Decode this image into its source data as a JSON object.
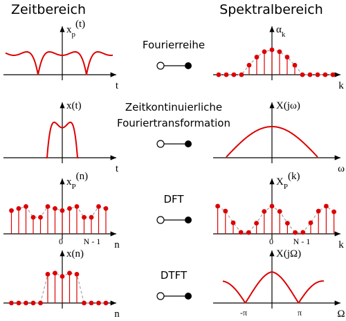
{
  "header": {
    "left": "Zeitbereich",
    "right": "Spektralbereich"
  },
  "rows": [
    {
      "transform": [
        "Fourierreihe"
      ],
      "time": {
        "ylabel": {
          "base": "x",
          "sub": "p",
          "arg": "(t)"
        },
        "xlabel": "t"
      },
      "freq": {
        "ylabel": {
          "base": "α",
          "sub": "k"
        },
        "xlabel": "k"
      }
    },
    {
      "transform": [
        "Zeitkontinuierliche",
        "Fouriertransformation"
      ],
      "time": {
        "ylabel": {
          "base": "x(t)"
        },
        "xlabel": "t"
      },
      "freq": {
        "ylabel": {
          "base": "X(jω)"
        },
        "xlabel": "ω"
      }
    },
    {
      "transform": [
        "DFT"
      ],
      "time": {
        "ylabel": {
          "base": "x",
          "sub": "P",
          "arg": "(n)"
        },
        "xlabel": "n",
        "ticks": [
          "0",
          "N - 1"
        ]
      },
      "freq": {
        "ylabel": {
          "base": "X",
          "sub": "P",
          "arg": "(k)"
        },
        "xlabel": "k",
        "ticks": [
          "0",
          "N - 1"
        ]
      }
    },
    {
      "transform": [
        "DTFT"
      ],
      "time": {
        "ylabel": {
          "base": "x(n)"
        },
        "xlabel": "n"
      },
      "freq": {
        "ylabel": {
          "base": "X(jΩ)"
        },
        "xlabel": "Ω",
        "ticks": [
          "-π",
          "π"
        ]
      }
    }
  ]
}
